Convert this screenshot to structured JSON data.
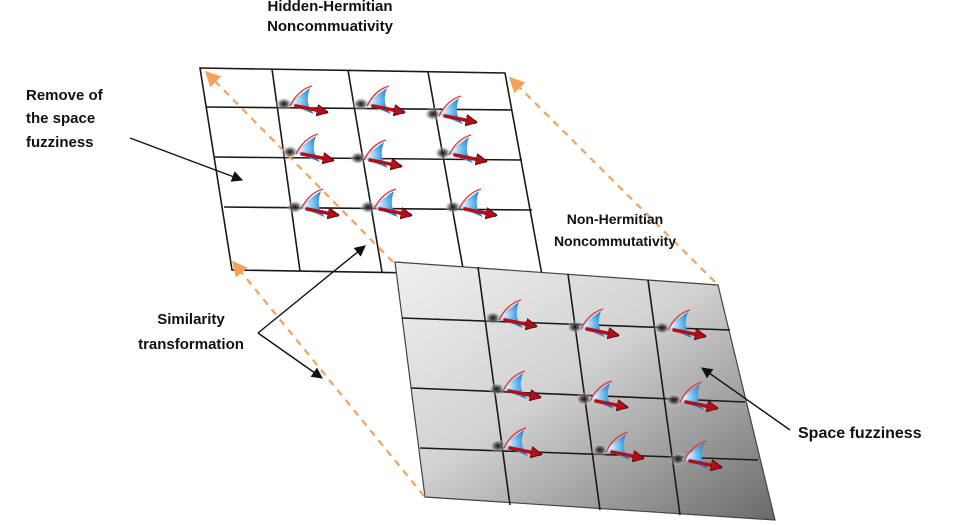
{
  "labels": {
    "top_plane_line1": "Hidden-Hermitian",
    "top_plane_line2": "Noncommuativity",
    "remove_line1": "Remove of",
    "remove_line2": "the space",
    "remove_line3": "fuzziness",
    "bottom_plane_line1": "Non-Hermitian",
    "bottom_plane_line2": "Noncommutativity",
    "similarity_line1": "Similarity",
    "similarity_line2": "transformation",
    "space_fuzziness": "Space fuzziness"
  },
  "colors": {
    "grid_line": "#1a1a1a",
    "dashed_arrow": "#f4a25a",
    "red_arrow": "#c0121a",
    "blue_wedge": "#4aa8e8",
    "wedge_edge": "#e23a3a",
    "fuzzy_plane_light": "#e6e6e6",
    "fuzzy_plane_dark": "#6d6d6d"
  },
  "icons": [
    "gaussian-blob-icon",
    "red-arrow-icon",
    "blue-wedge-icon"
  ]
}
